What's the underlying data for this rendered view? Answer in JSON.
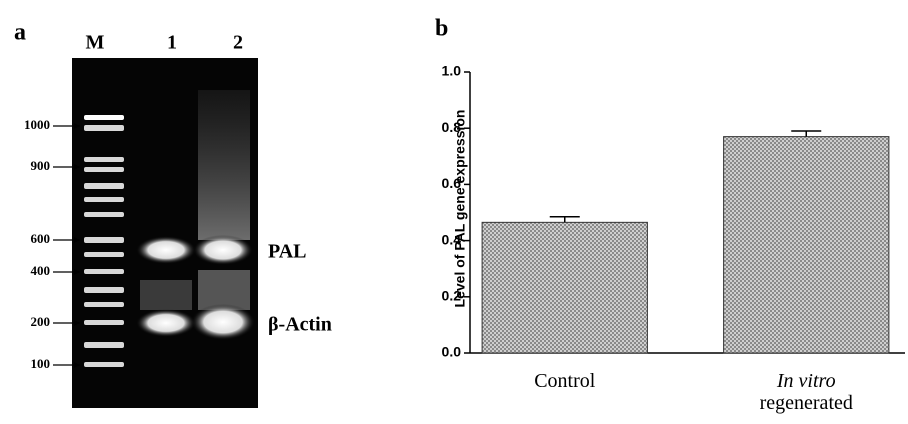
{
  "panel_a": {
    "label": "a",
    "lanes": [
      "M",
      "1",
      "2"
    ],
    "markers": [
      "1000",
      "900",
      "600",
      "400",
      "200",
      "100"
    ],
    "bands": [
      "PAL",
      "β-Actin"
    ]
  },
  "chart_data": {
    "type": "bar",
    "title": "b",
    "ylabel": "Level of PAL gene expression",
    "categories": [
      "Control",
      "In vitro regenerated"
    ],
    "values": [
      0.465,
      0.77
    ],
    "errors": [
      0.02,
      0.02
    ],
    "ylim": [
      0,
      1
    ],
    "yticks": [
      {
        "value": 0,
        "label": "0.0"
      },
      0.2,
      0.4,
      0.6,
      0.8,
      {
        "value": 1,
        "label": "1.0"
      }
    ],
    "grid": false
  }
}
